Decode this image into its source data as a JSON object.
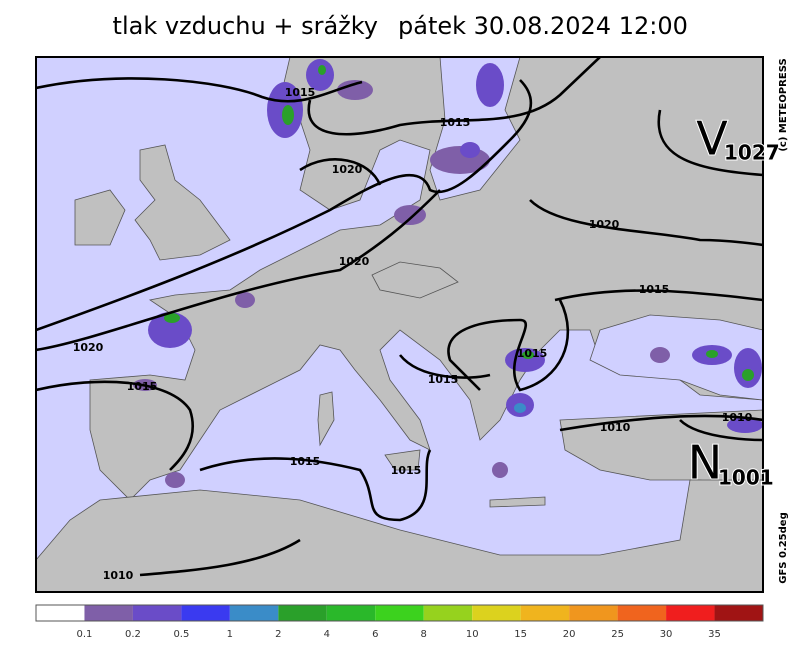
{
  "header": {
    "title": "tlak vzduchu + srážky",
    "datetime": "pátek 30.08.2024 12:00"
  },
  "map": {
    "isobar_labels": [
      "1015",
      "1015",
      "1020",
      "1020",
      "1020",
      "1015",
      "1020",
      "1015",
      "1015",
      "1015",
      "1010",
      "1010",
      "1015",
      "1015",
      "1010"
    ],
    "high": {
      "letter": "V",
      "value": "1027"
    },
    "low": {
      "letter": "N",
      "value": "1001"
    },
    "copyright": "(c) METEOPRESS",
    "model": "GFS 0.25deg"
  },
  "legend": {
    "colors": [
      "#ffffff",
      "#7f5fa8",
      "#6a4cc8",
      "#3a3af0",
      "#3a8cc8",
      "#2aa02a",
      "#2ab82a",
      "#3cd21e",
      "#96d21e",
      "#dcd21e",
      "#f0b41e",
      "#f0961e",
      "#f0641e",
      "#f01e1e",
      "#a01414"
    ],
    "labels": [
      0.1,
      0.2,
      0.5,
      1,
      2,
      4,
      6,
      8,
      10,
      15,
      20,
      25,
      30,
      35
    ]
  }
}
